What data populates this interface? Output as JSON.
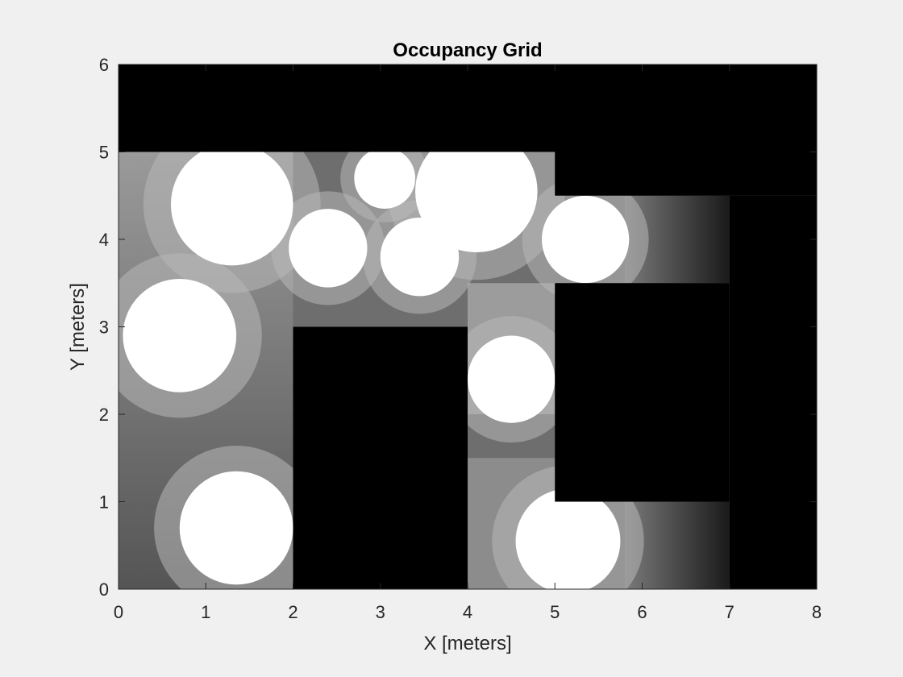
{
  "chart_data": {
    "type": "heatmap",
    "title": "Occupancy Grid",
    "xlabel": "X [meters]",
    "ylabel": "Y [meters]",
    "xlim": [
      0,
      8
    ],
    "ylim": [
      0,
      6
    ],
    "xticks": [
      0,
      1,
      2,
      3,
      4,
      5,
      6,
      7,
      8
    ],
    "yticks": [
      0,
      1,
      2,
      3,
      4,
      5,
      6
    ],
    "colormap": "gray (0 = black occupied, 1 = white free)",
    "grid": false,
    "occupied_regions_meters": [
      {
        "name": "top wall",
        "x": [
          0,
          8
        ],
        "y": [
          5,
          6
        ]
      },
      {
        "name": "right block upper",
        "x": [
          5,
          8
        ],
        "y": [
          4.5,
          5
        ]
      },
      {
        "name": "right block column",
        "x": [
          7,
          8
        ],
        "y": [
          0,
          4.5
        ]
      },
      {
        "name": "right block middle",
        "x": [
          5,
          7
        ],
        "y": [
          1,
          3.5
        ]
      },
      {
        "name": "center pillar",
        "x": [
          2,
          4
        ],
        "y": [
          0,
          3
        ]
      }
    ],
    "free_region_circles_meters": [
      {
        "cx": 1.3,
        "cy": 4.4,
        "r": 0.7
      },
      {
        "cx": 0.7,
        "cy": 2.9,
        "r": 0.65
      },
      {
        "cx": 1.35,
        "cy": 0.7,
        "r": 0.65
      },
      {
        "cx": 2.4,
        "cy": 3.9,
        "r": 0.45
      },
      {
        "cx": 3.05,
        "cy": 4.7,
        "r": 0.35
      },
      {
        "cx": 3.45,
        "cy": 3.8,
        "r": 0.45
      },
      {
        "cx": 4.1,
        "cy": 4.55,
        "r": 0.7
      },
      {
        "cx": 4.5,
        "cy": 2.4,
        "r": 0.5
      },
      {
        "cx": 5.35,
        "cy": 4.0,
        "r": 0.5
      },
      {
        "cx": 5.15,
        "cy": 0.55,
        "r": 0.6
      }
    ],
    "gray_gradient_regions_meters": [
      {
        "name": "upper-right corridor",
        "x": [
          5.8,
          7
        ],
        "y": [
          3.5,
          4.5
        ]
      },
      {
        "name": "lower-right corridor",
        "x": [
          5.8,
          7
        ],
        "y": [
          0,
          1
        ]
      }
    ]
  }
}
